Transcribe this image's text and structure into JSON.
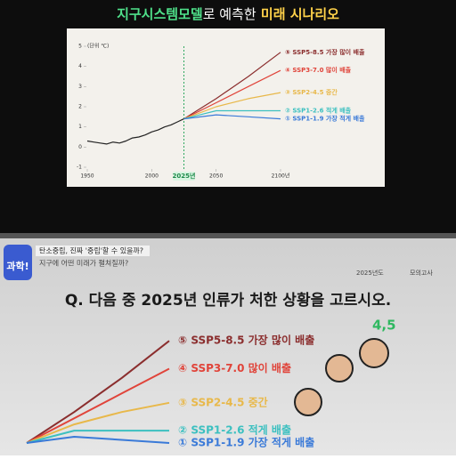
{
  "title_parts": [
    "지구시스템모델",
    "로 예측한",
    "미래 시나리오"
  ],
  "chart_data": {
    "type": "line",
    "unit": "(단위 ℃)",
    "xlim": [
      1950,
      2100
    ],
    "xticks": [
      1950,
      2000,
      {
        "value": 2025,
        "label": "2025년"
      },
      2050,
      {
        "value": 2100,
        "label": "2100년"
      }
    ],
    "ylim": [
      -1,
      5
    ],
    "yticks": [
      -1,
      0,
      1,
      2,
      3,
      4,
      5
    ],
    "series": [
      {
        "color": "#222222",
        "x": [
          1950,
          1955,
          1960,
          1965,
          1970,
          1975,
          1980,
          1985,
          1990,
          1995,
          2000,
          2005,
          2010,
          2015,
          2020,
          2025
        ],
        "values": [
          0.3,
          0.25,
          0.2,
          0.15,
          0.25,
          0.2,
          0.3,
          0.45,
          0.5,
          0.6,
          0.75,
          0.85,
          1.0,
          1.1,
          1.25,
          1.4
        ]
      },
      {
        "name": "⑤ SSP5-8.5 가장 많이 배출",
        "color": "#8b2e2e",
        "x": [
          2025,
          2050,
          2075,
          2100
        ],
        "values": [
          1.4,
          2.4,
          3.5,
          4.7
        ]
      },
      {
        "name": "④ SSP3-7.0 많이 배출",
        "color": "#e0443a",
        "x": [
          2025,
          2050,
          2075,
          2100
        ],
        "values": [
          1.4,
          2.2,
          3.0,
          3.8
        ]
      },
      {
        "name": "③ SSP2-4.5 중간",
        "color": "#e8b84a",
        "x": [
          2025,
          2050,
          2075,
          2100
        ],
        "values": [
          1.4,
          2.0,
          2.4,
          2.7
        ]
      },
      {
        "name": "② SSP1-2.6 적게 배출",
        "color": "#3cc0c0",
        "x": [
          2025,
          2050,
          2075,
          2100
        ],
        "values": [
          1.4,
          1.8,
          1.8,
          1.8
        ]
      },
      {
        "name": "① SSP1-1.9 가장 적게 배출",
        "color": "#3a7ad8",
        "x": [
          2025,
          2050,
          2075,
          2100
        ],
        "values": [
          1.4,
          1.6,
          1.5,
          1.4
        ]
      }
    ]
  },
  "broadcast": {
    "logo": "과학!",
    "caption_1": "탄소중립, 진짜 '중립'할 수 있을까?",
    "caption_2": "지구에 어떤 미래가 펼쳐질까?",
    "exam_year": "2025년도",
    "exam": "모의고사",
    "question": "Q. 다음 중 2025년 인류가 처한 상황을 고르시오.",
    "score": "4,5"
  }
}
